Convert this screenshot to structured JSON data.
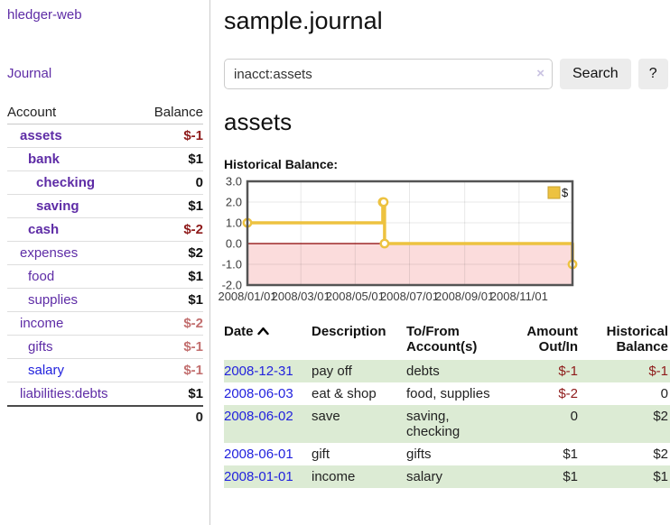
{
  "sidebar": {
    "brand": "hledger-web",
    "nav_journal": "Journal",
    "accounts_table": {
      "headers": [
        "Account",
        "Balance"
      ],
      "rows": [
        {
          "name": "assets",
          "indent": 1,
          "bold": true,
          "link_color": "purple",
          "balance": "$-1",
          "balance_style": "neg"
        },
        {
          "name": "bank",
          "indent": 2,
          "bold": true,
          "link_color": "purple",
          "balance": "$1",
          "balance_style": "normal"
        },
        {
          "name": "checking",
          "indent": 3,
          "bold": true,
          "link_color": "purple",
          "balance": "0",
          "balance_style": "normal"
        },
        {
          "name": "saving",
          "indent": 3,
          "bold": true,
          "link_color": "purple",
          "balance": "$1",
          "balance_style": "normal"
        },
        {
          "name": "cash",
          "indent": 2,
          "bold": true,
          "link_color": "purple",
          "balance": "$-2",
          "balance_style": "neg"
        },
        {
          "name": "expenses",
          "indent": 1,
          "bold": false,
          "link_color": "purple",
          "balance": "$2",
          "balance_style": "normal"
        },
        {
          "name": "food",
          "indent": 2,
          "bold": false,
          "link_color": "purple",
          "balance": "$1",
          "balance_style": "normal"
        },
        {
          "name": "supplies",
          "indent": 2,
          "bold": false,
          "link_color": "purple",
          "balance": "$1",
          "balance_style": "normal"
        },
        {
          "name": "income",
          "indent": 1,
          "bold": false,
          "link_color": "purple",
          "balance": "$-2",
          "balance_style": "negl"
        },
        {
          "name": "gifts",
          "indent": 2,
          "bold": false,
          "link_color": "purple",
          "balance": "$-1",
          "balance_style": "negl"
        },
        {
          "name": "salary",
          "indent": 2,
          "bold": false,
          "link_color": "blue",
          "balance": "$-1",
          "balance_style": "negl"
        },
        {
          "name": "liabilities:debts",
          "indent": 1,
          "bold": false,
          "link_color": "purple",
          "balance": "$1",
          "balance_style": "normal"
        }
      ],
      "total": "0"
    }
  },
  "main": {
    "title": "sample.journal",
    "search": {
      "value": "inacct:assets",
      "clear_icon": "×",
      "button": "Search",
      "help": "?"
    },
    "account_heading": "assets",
    "chart_heading": "Historical Balance:"
  },
  "chart_data": {
    "type": "line",
    "step": true,
    "title": "Historical Balance",
    "series": [
      {
        "name": "$",
        "color": "#EDC240",
        "points": [
          [
            "2008-01-01",
            1
          ],
          [
            "2008-06-01",
            2
          ],
          [
            "2008-06-02",
            2
          ],
          [
            "2008-06-03",
            0
          ],
          [
            "2008-12-31",
            -1
          ]
        ]
      }
    ],
    "x_domain": [
      "2008-01-01",
      "2008-12-31"
    ],
    "xticks": [
      "2008/01/01",
      "2008/03/01",
      "2008/05/01",
      "2008/07/01",
      "2008/09/01",
      "2008/11/01"
    ],
    "yticks": [
      "-2.0",
      "-1.0",
      "0.0",
      "1.0",
      "2.0",
      "3.0"
    ],
    "ylim": [
      -2,
      3
    ],
    "legend": "$",
    "legend_position": "top-right",
    "grid": true,
    "zero_line_color": "#8b0000",
    "negative_region_color": "#fbdcdc",
    "border_color": "#545454",
    "tick_label_color": "#3c3c3c"
  },
  "transactions": {
    "headers": [
      "Date",
      "Description",
      "To/From Account(s)",
      "Amount Out/In",
      "Historical Balance"
    ],
    "sorted_by": "Date ascending",
    "rows": [
      {
        "date": "2008-12-31",
        "description": "pay off",
        "accounts": "debts",
        "amount": "$-1",
        "amount_negative": true,
        "balance": "$-1",
        "balance_negative": true,
        "shaded": true
      },
      {
        "date": "2008-06-03",
        "description": "eat & shop",
        "accounts": "food, supplies",
        "amount": "$-2",
        "amount_negative": true,
        "balance": "0",
        "balance_negative": false,
        "shaded": false
      },
      {
        "date": "2008-06-02",
        "description": "save",
        "accounts": "saving, checking",
        "amount": "0",
        "amount_negative": false,
        "balance": "$2",
        "balance_negative": false,
        "shaded": true
      },
      {
        "date": "2008-06-01",
        "description": "gift",
        "accounts": "gifts",
        "amount": "$1",
        "amount_negative": false,
        "balance": "$2",
        "balance_negative": false,
        "shaded": false
      },
      {
        "date": "2008-01-01",
        "description": "income",
        "accounts": "salary",
        "amount": "$1",
        "amount_negative": false,
        "balance": "$1",
        "balance_negative": false,
        "shaded": true
      }
    ]
  },
  "colors": {
    "link_purple": "#5e2ca6",
    "link_blue": "#2222dd",
    "negative_amount": "#8e1a1a",
    "negative_amount_light": "#c26f6f",
    "row_shade_green": "#dcebd4",
    "series_yellow": "#EDC240",
    "button_gray": "#ececec"
  }
}
